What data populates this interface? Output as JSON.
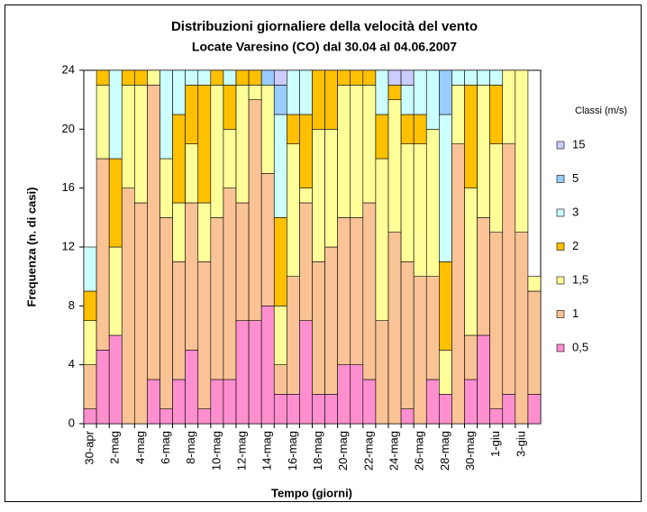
{
  "chart_data": {
    "type": "stacked_bar",
    "title": "Distribuzioni giornaliere della velocità del vento",
    "subtitle": "Locate Varesino (CO) dal 30.04 al 04.06.2007",
    "y_label": "Frequenza (n. di casi)",
    "x_label": "Tempo (giorni)",
    "legend_title": "Classi (m/s)",
    "legend": "right",
    "grid": false,
    "ylim": [
      0,
      24
    ],
    "yticks": [
      0,
      4,
      8,
      12,
      16,
      20,
      24
    ],
    "categories": [
      "30-apr",
      null,
      "2-mag",
      null,
      "4-mag",
      null,
      "6-mag",
      null,
      "8-mag",
      null,
      "10-mag",
      null,
      "12-mag",
      null,
      "14-mag",
      null,
      "16-mag",
      null,
      "18-mag",
      null,
      "20-mag",
      null,
      "22-mag",
      null,
      "24-mag",
      null,
      "26-mag",
      null,
      "28-mag",
      null,
      "30-mag",
      null,
      "1-giu",
      null,
      "3-giu",
      null
    ],
    "series": [
      {
        "name": "0,5",
        "color": "#ff8fcf",
        "values": [
          1,
          5,
          6,
          0,
          0,
          3,
          1,
          3,
          5,
          1,
          3,
          3,
          7,
          7,
          8,
          2,
          2,
          7,
          2,
          2,
          4,
          4,
          3,
          0,
          0,
          1,
          0,
          3,
          2,
          0,
          3,
          6,
          1,
          2,
          0,
          2
        ]
      },
      {
        "name": "1",
        "color": "#fac396",
        "values": [
          3,
          13,
          0,
          16,
          15,
          20,
          13,
          8,
          10,
          10,
          11,
          13,
          8,
          15,
          9,
          2,
          8,
          8,
          9,
          10,
          10,
          10,
          12,
          7,
          13,
          10,
          10,
          7,
          0,
          19,
          3,
          8,
          12,
          17,
          13,
          7
        ]
      },
      {
        "name": "1,5",
        "color": "#ffff99",
        "values": [
          3,
          5,
          6,
          7,
          8,
          1,
          4,
          4,
          4,
          4,
          9,
          4,
          8,
          1,
          6,
          4,
          9,
          1,
          9,
          8,
          9,
          9,
          8,
          11,
          9,
          8,
          9,
          10,
          3,
          4,
          10,
          9,
          6,
          5,
          11,
          1
        ]
      },
      {
        "name": "2",
        "color": "#ffc000",
        "values": [
          2,
          1,
          6,
          1,
          1,
          0,
          0,
          6,
          4,
          8,
          1,
          3,
          1,
          1,
          0,
          6,
          2,
          5,
          4,
          4,
          1,
          1,
          1,
          3,
          1,
          2,
          2,
          0,
          6,
          0,
          7,
          0,
          4,
          0,
          0,
          0
        ]
      },
      {
        "name": "3",
        "color": "#ccffff",
        "values": [
          3,
          0,
          6,
          0,
          0,
          0,
          6,
          3,
          1,
          1,
          0,
          1,
          0,
          0,
          0,
          7,
          3,
          3,
          0,
          0,
          0,
          0,
          0,
          3,
          0,
          2,
          3,
          4,
          10,
          1,
          1,
          1,
          1,
          0,
          0,
          0
        ]
      },
      {
        "name": "5",
        "color": "#99ccff",
        "values": [
          0,
          0,
          0,
          0,
          0,
          0,
          0,
          0,
          0,
          0,
          0,
          0,
          0,
          0,
          1,
          2,
          0,
          0,
          0,
          0,
          0,
          0,
          0,
          0,
          0,
          0,
          0,
          0,
          3,
          0,
          0,
          0,
          0,
          0,
          0,
          0
        ]
      },
      {
        "name": "15",
        "color": "#ccccff",
        "values": [
          0,
          0,
          0,
          0,
          0,
          0,
          0,
          0,
          0,
          0,
          0,
          0,
          0,
          0,
          0,
          1,
          0,
          0,
          0,
          0,
          0,
          0,
          0,
          0,
          1,
          1,
          0,
          0,
          0,
          0,
          0,
          0,
          0,
          0,
          0,
          0
        ]
      }
    ]
  }
}
